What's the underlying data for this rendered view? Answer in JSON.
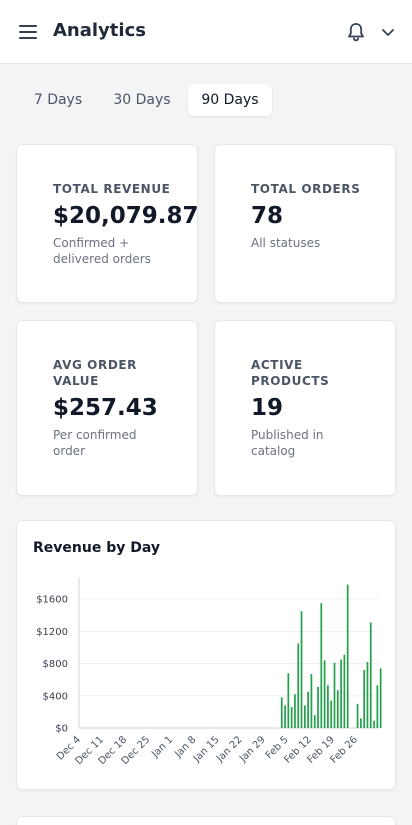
{
  "header": {
    "title": "Analytics",
    "menu_icon": "menu-icon",
    "notification_icon": "bell-icon",
    "dropdown_icon": "chevron-down-icon"
  },
  "range_tabs": {
    "items": [
      {
        "label": "7 Days",
        "active": false
      },
      {
        "label": "30 Days",
        "active": false
      },
      {
        "label": "90 Days",
        "active": true
      }
    ]
  },
  "stats": [
    {
      "label": "TOTAL REVENUE",
      "value": "$20,079.87",
      "sub": "Confirmed + delivered orders"
    },
    {
      "label": "TOTAL ORDERS",
      "value": "78",
      "sub": "All statuses"
    },
    {
      "label": "AVG ORDER VALUE",
      "value": "$257.43",
      "sub": "Per confirmed order"
    },
    {
      "label": "ACTIVE PRODUCTS",
      "value": "19",
      "sub": "Published in catalog"
    }
  ],
  "chart_card": {
    "title": "Revenue by Day"
  },
  "colors": {
    "bar": "#22a04b",
    "accent_bg": "#f3f4f6"
  },
  "chart_data": {
    "type": "bar",
    "title": "Revenue by Day",
    "xlabel": "",
    "ylabel": "",
    "ylim": [
      0,
      1800
    ],
    "y_ticks": [
      "$0",
      "$400",
      "$800",
      "$1200",
      "$1600"
    ],
    "y_tick_values": [
      0,
      400,
      800,
      1200,
      1600
    ],
    "x_tick_labels": [
      "Dec 4",
      "Dec 11",
      "Dec 18",
      "Dec 25",
      "Jan 1",
      "Jan 8",
      "Jan 15",
      "Jan 22",
      "Jan 29",
      "Feb 5",
      "Feb 12",
      "Feb 19",
      "Feb 26"
    ],
    "grid": true,
    "series": [
      {
        "values": [
          {
            "date": "Feb 3",
            "value": 380
          },
          {
            "date": "Feb 4",
            "value": 280
          },
          {
            "date": "Feb 5",
            "value": 680
          },
          {
            "date": "Feb 6",
            "value": 260
          },
          {
            "date": "Feb 7",
            "value": 420
          },
          {
            "date": "Feb 8",
            "value": 1050
          },
          {
            "date": "Feb 9",
            "value": 1450
          },
          {
            "date": "Feb 10",
            "value": 280
          },
          {
            "date": "Feb 11",
            "value": 450
          },
          {
            "date": "Feb 12",
            "value": 670
          },
          {
            "date": "Feb 13",
            "value": 160
          },
          {
            "date": "Feb 14",
            "value": 510
          },
          {
            "date": "Feb 15",
            "value": 1550
          },
          {
            "date": "Feb 16",
            "value": 840
          },
          {
            "date": "Feb 17",
            "value": 530
          },
          {
            "date": "Feb 18",
            "value": 340
          },
          {
            "date": "Feb 19",
            "value": 810
          },
          {
            "date": "Feb 20",
            "value": 470
          },
          {
            "date": "Feb 21",
            "value": 850
          },
          {
            "date": "Feb 22",
            "value": 910
          },
          {
            "date": "Feb 23",
            "value": 1780
          },
          {
            "date": "Feb 24",
            "value": 0
          },
          {
            "date": "Feb 25",
            "value": 0
          },
          {
            "date": "Feb 26",
            "value": 300
          },
          {
            "date": "Feb 27",
            "value": 120
          },
          {
            "date": "Feb 28",
            "value": 720
          },
          {
            "date": "Feb 29",
            "value": 820
          },
          {
            "date": "Mar 1",
            "value": 1310
          },
          {
            "date": "Mar 2",
            "value": 90
          },
          {
            "date": "Mar 3",
            "value": 530
          },
          {
            "date": "Mar 4",
            "value": 740
          }
        ]
      }
    ]
  }
}
